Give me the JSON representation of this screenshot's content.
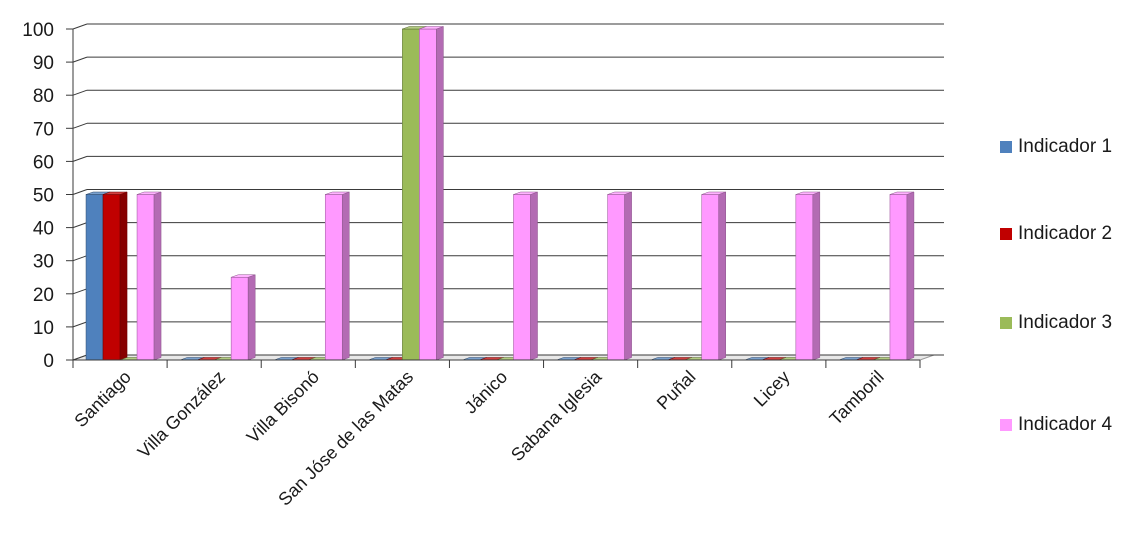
{
  "chart_data": {
    "type": "bar",
    "style": "3d-clustered-column",
    "categories": [
      "Santiago",
      "Villa González",
      "Villa Bisonó",
      "San Jóse de las Matas",
      "Jánico",
      "Sabana Iglesia",
      "Puñal",
      "Licey",
      "Tamboril"
    ],
    "series": [
      {
        "name": "Indicador 1",
        "color": "#4f81bd",
        "values": [
          50,
          0,
          0,
          0,
          0,
          0,
          0,
          0,
          0
        ]
      },
      {
        "name": "Indicador 2",
        "color": "#c00000",
        "values": [
          50,
          0,
          0,
          0,
          0,
          0,
          0,
          0,
          0
        ]
      },
      {
        "name": "Indicador 3",
        "color": "#9bbb59",
        "values": [
          0,
          0,
          0,
          100,
          0,
          0,
          0,
          0,
          0
        ]
      },
      {
        "name": "Indicador 4",
        "color": "#ff99ff",
        "values": [
          50,
          25,
          50,
          100,
          50,
          50,
          50,
          50,
          50
        ]
      }
    ],
    "yticks": [
      0,
      10,
      20,
      30,
      40,
      50,
      60,
      70,
      80,
      90,
      100
    ],
    "ylim": [
      0,
      100
    ],
    "grid": true,
    "legend_position": "right"
  }
}
